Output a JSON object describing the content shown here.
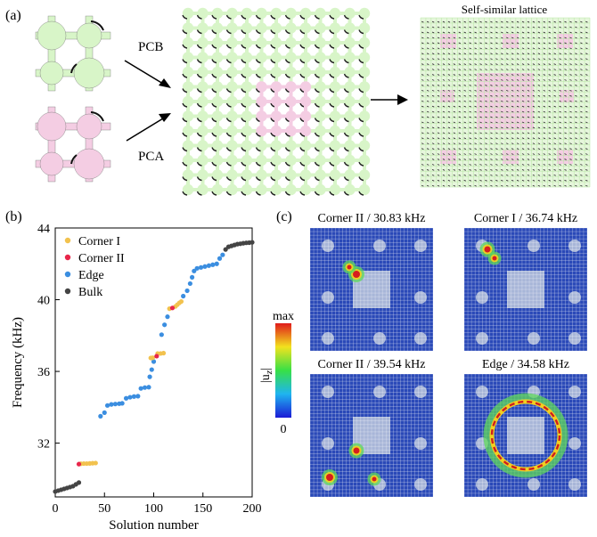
{
  "panel_a": {
    "label": "(a)",
    "pcb_label": "PCB",
    "pca_label": "PCA",
    "lattice_title": "Self-similar lattice",
    "colors": {
      "pcb": "#d8f5c8",
      "pca": "#f4cde3",
      "edge": "#222222"
    }
  },
  "panel_b": {
    "label": "(b)"
  },
  "panel_c": {
    "label": "(c)",
    "colorbar_max": "max",
    "colorbar_min": "0",
    "colorbar_label": "|u",
    "colorbar_label_sub": "z",
    "colorbar_label_end": "|",
    "maps": [
      {
        "title": "Corner II / 30.83 kHz",
        "mode": "corner2a"
      },
      {
        "title": "Corner I / 36.74 kHz",
        "mode": "corner1"
      },
      {
        "title": "Corner II / 39.54 kHz",
        "mode": "corner2b"
      },
      {
        "title": "Edge / 34.58 kHz",
        "mode": "edge"
      }
    ]
  },
  "chart_data": {
    "type": "scatter",
    "title": "",
    "xlabel": "Solution number",
    "ylabel": "Frequency (kHz)",
    "xlim": [
      0,
      200
    ],
    "ylim": [
      29,
      44
    ],
    "xticks": [
      0,
      50,
      100,
      150,
      200
    ],
    "yticks": [
      32,
      36,
      40,
      44
    ],
    "legend_position": "top-left",
    "series": [
      {
        "name": "Corner I",
        "color": "#f2c24e",
        "points": [
          [
            26,
            30.85
          ],
          [
            29,
            30.86
          ],
          [
            32,
            30.86
          ],
          [
            35,
            30.87
          ],
          [
            38,
            30.88
          ],
          [
            41,
            30.89
          ],
          [
            97,
            36.75
          ],
          [
            99,
            36.76
          ],
          [
            104,
            37.0
          ],
          [
            107,
            37.0
          ],
          [
            110,
            37.02
          ],
          [
            116,
            39.5
          ],
          [
            122,
            39.62
          ],
          [
            124,
            39.72
          ],
          [
            126,
            39.82
          ],
          [
            128,
            39.9
          ]
        ]
      },
      {
        "name": "Corner II",
        "color": "#e8264a",
        "points": [
          [
            24,
            30.83
          ],
          [
            103,
            36.85
          ],
          [
            119,
            39.54
          ]
        ]
      },
      {
        "name": "Edge",
        "color": "#3b8ee0",
        "points": [
          [
            46,
            33.5
          ],
          [
            50,
            33.7
          ],
          [
            53,
            34.1
          ],
          [
            57,
            34.16
          ],
          [
            61,
            34.18
          ],
          [
            65,
            34.2
          ],
          [
            68,
            34.22
          ],
          [
            72,
            34.5
          ],
          [
            76,
            34.56
          ],
          [
            80,
            34.6
          ],
          [
            84,
            34.62
          ],
          [
            87,
            35.05
          ],
          [
            91,
            35.1
          ],
          [
            95,
            35.12
          ],
          [
            96,
            35.7
          ],
          [
            98,
            36.1
          ],
          [
            100,
            36.55
          ],
          [
            108,
            38.05
          ],
          [
            111,
            38.6
          ],
          [
            114,
            39.05
          ],
          [
            130,
            40.2
          ],
          [
            134,
            40.5
          ],
          [
            137,
            40.9
          ],
          [
            139,
            41.25
          ],
          [
            141,
            41.6
          ],
          [
            144,
            41.75
          ],
          [
            148,
            41.8
          ],
          [
            152,
            41.85
          ],
          [
            156,
            41.9
          ],
          [
            160,
            41.95
          ],
          [
            164,
            42.0
          ],
          [
            167,
            42.3
          ],
          [
            170,
            42.5
          ]
        ]
      },
      {
        "name": "Bulk",
        "color": "#444444",
        "points": [
          [
            0,
            29.3
          ],
          [
            3,
            29.35
          ],
          [
            6,
            29.4
          ],
          [
            9,
            29.45
          ],
          [
            12,
            29.5
          ],
          [
            15,
            29.55
          ],
          [
            18,
            29.6
          ],
          [
            21,
            29.7
          ],
          [
            24,
            29.8
          ],
          [
            173,
            42.8
          ],
          [
            176,
            42.95
          ],
          [
            179,
            43.0
          ],
          [
            182,
            43.05
          ],
          [
            185,
            43.1
          ],
          [
            188,
            43.12
          ],
          [
            191,
            43.15
          ],
          [
            194,
            43.17
          ],
          [
            197,
            43.18
          ],
          [
            200,
            43.2
          ]
        ]
      }
    ]
  }
}
